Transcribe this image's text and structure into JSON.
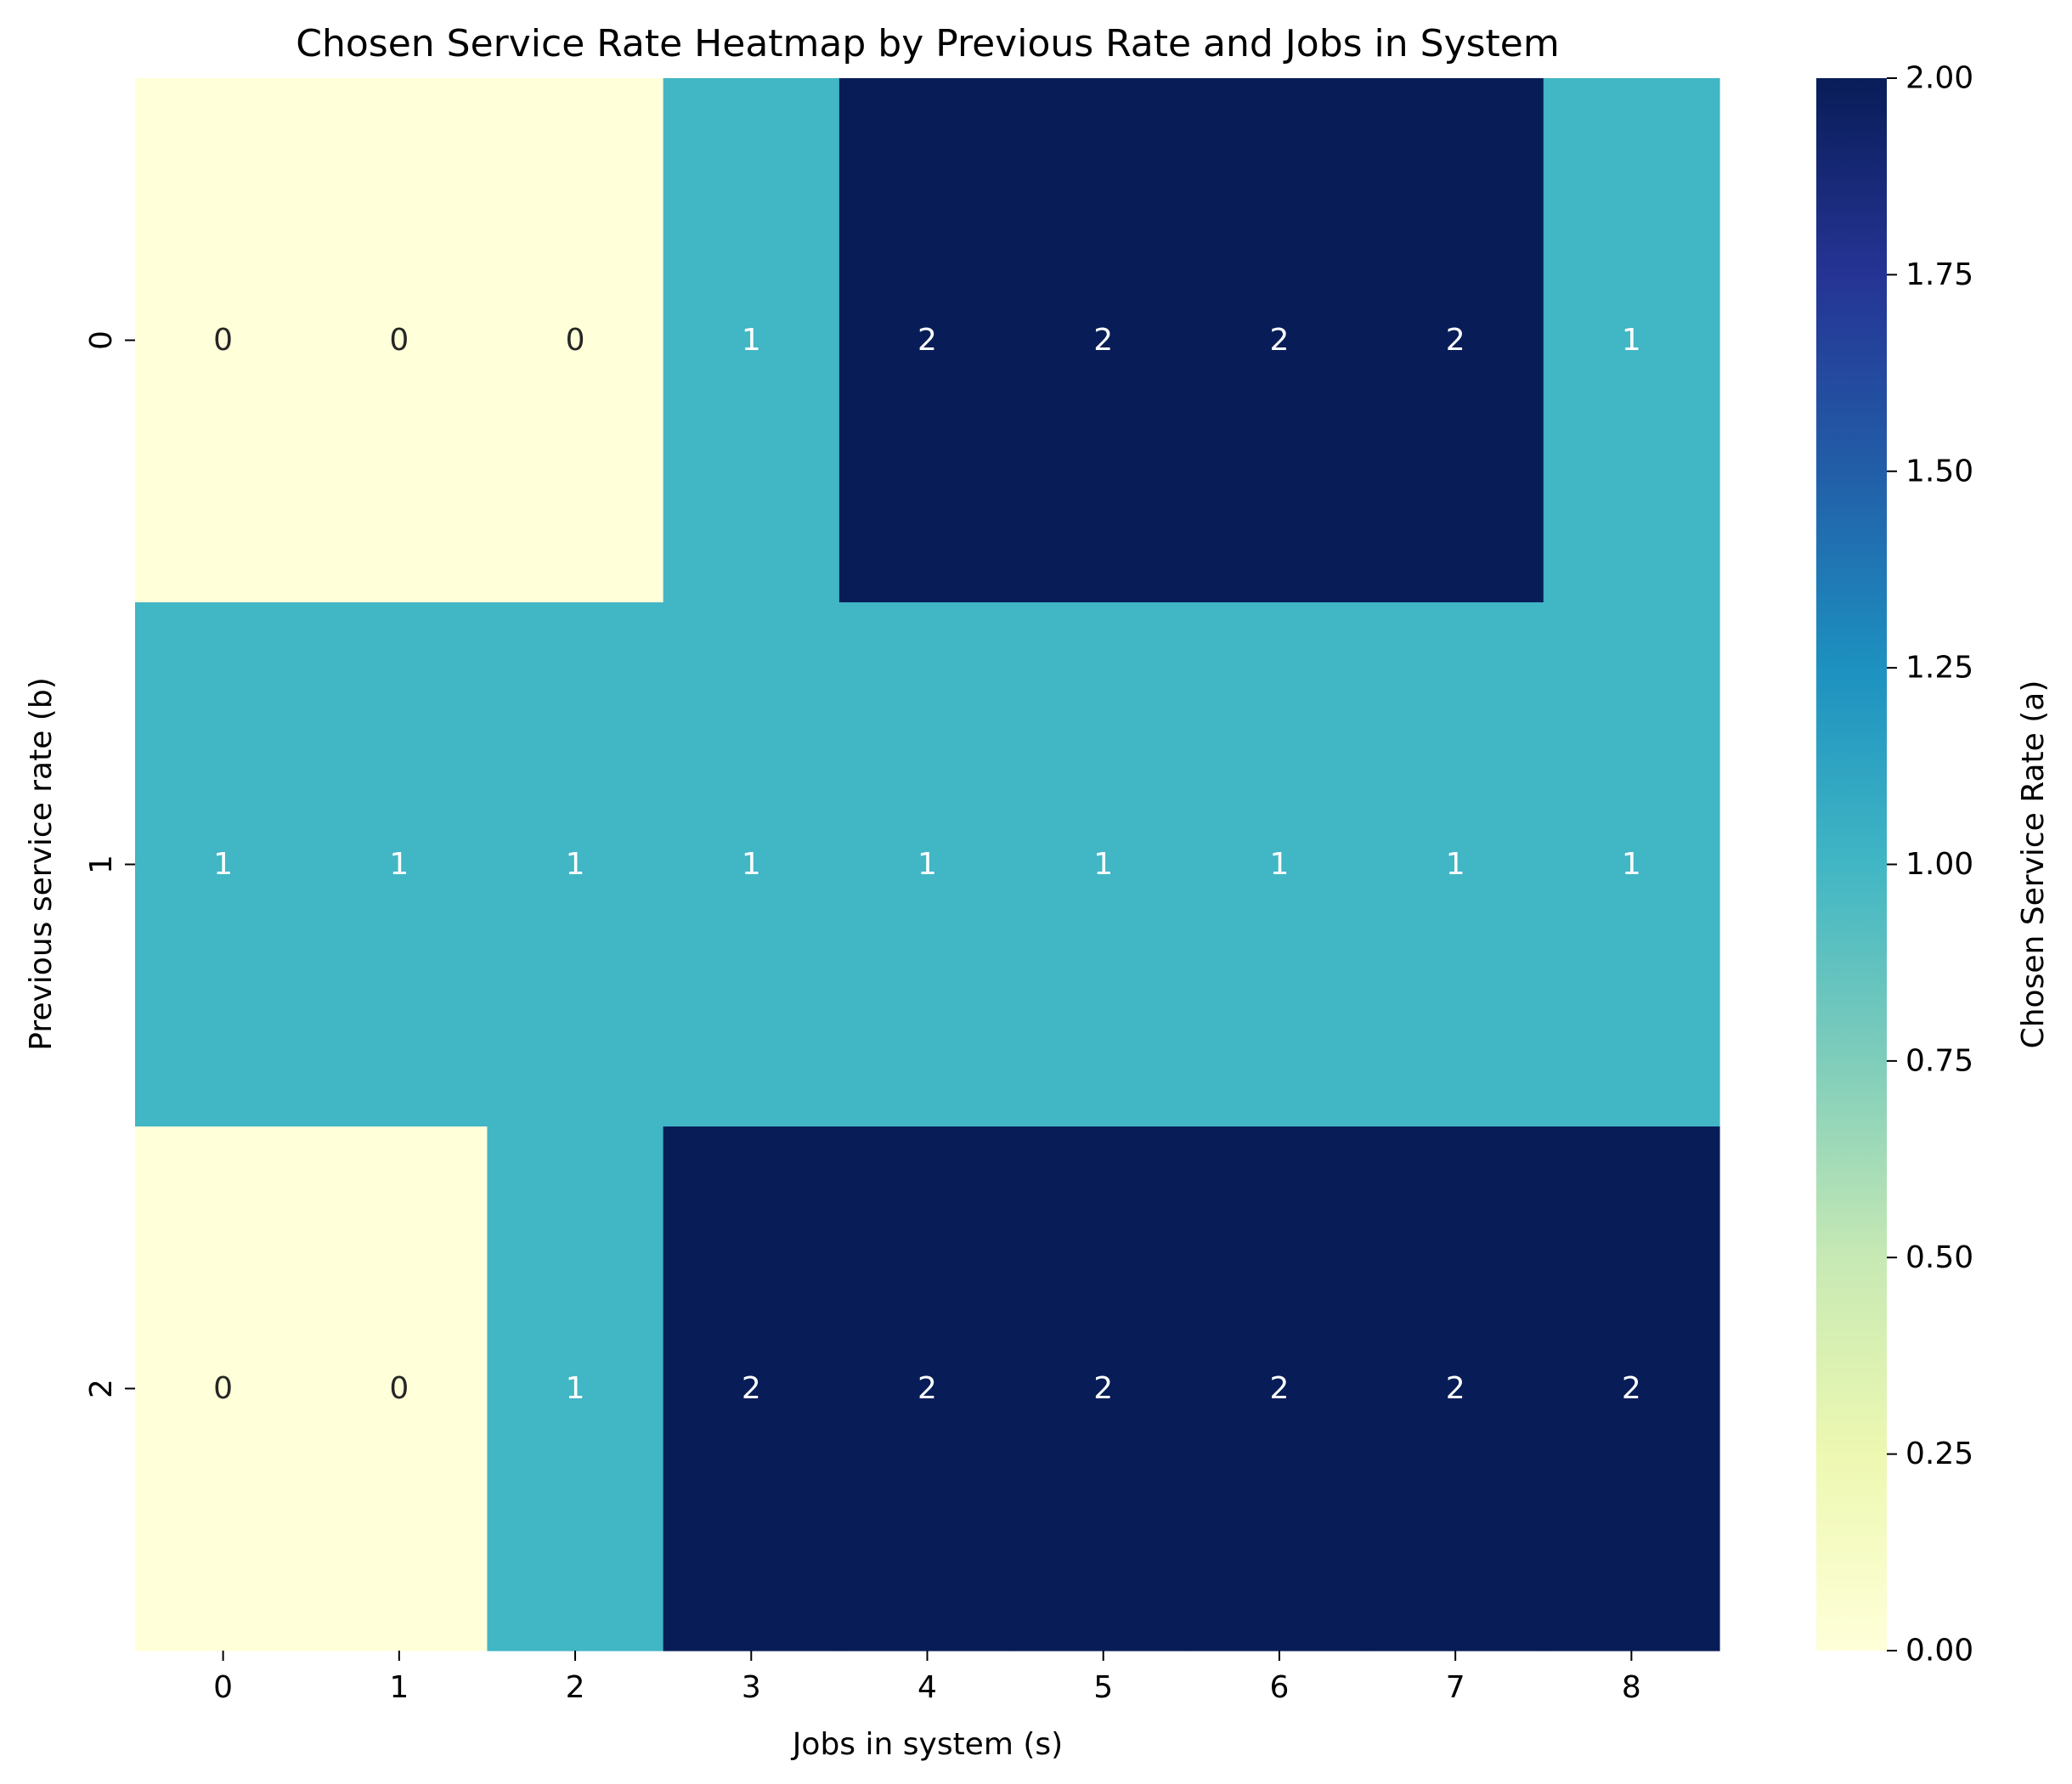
{
  "chart_data": {
    "type": "heatmap",
    "title": "Chosen Service Rate Heatmap by Previous Rate and Jobs in System",
    "xlabel": "Jobs in system (s)",
    "ylabel": "Previous service rate (b)",
    "x_categories": [
      "0",
      "1",
      "2",
      "3",
      "4",
      "5",
      "6",
      "7",
      "8"
    ],
    "y_categories": [
      "0",
      "1",
      "2"
    ],
    "values": [
      [
        0,
        0,
        0,
        1,
        2,
        2,
        2,
        2,
        1
      ],
      [
        1,
        1,
        1,
        1,
        1,
        1,
        1,
        1,
        1
      ],
      [
        0,
        0,
        1,
        2,
        2,
        2,
        2,
        2,
        2
      ]
    ],
    "colormap": "YlGnBu",
    "vmin": 0,
    "vmax": 2,
    "annotations": true,
    "colorbar": {
      "label": "Chosen Service Rate (a)",
      "ticks": [
        "0.00",
        "0.25",
        "0.50",
        "0.75",
        "1.00",
        "1.25",
        "1.50",
        "1.75",
        "2.00"
      ],
      "tick_values": [
        0,
        0.25,
        0.5,
        0.75,
        1.0,
        1.25,
        1.5,
        1.75,
        2.0
      ]
    },
    "colors": {
      "low": "#ffffd9",
      "mid": "#41b6c4",
      "high": "#081d58"
    }
  }
}
